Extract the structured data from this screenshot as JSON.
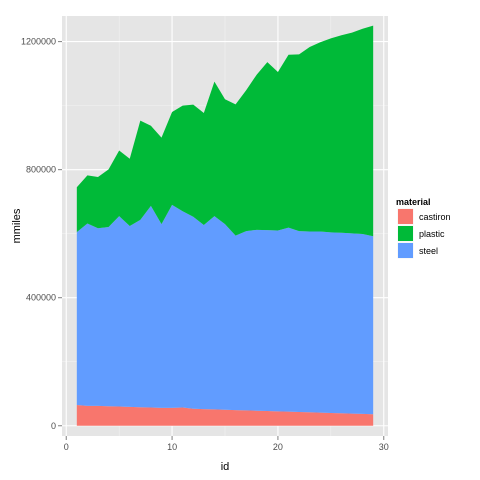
{
  "chart_data": {
    "type": "area",
    "stacked": true,
    "xlabel": "id",
    "ylabel": "mmiles",
    "xlim": [
      -0.4,
      30.4
    ],
    "ylim": [
      -32000,
      1280000
    ],
    "xticks": [
      0,
      10,
      20,
      30
    ],
    "yticks": [
      0,
      400000,
      800000,
      1200000
    ],
    "xtick_labels": [
      "0",
      "10",
      "20",
      "30"
    ],
    "ytick_labels": [
      "0",
      "400000",
      "800000",
      "1200000"
    ],
    "legend": {
      "title": "material",
      "position": "right",
      "entries": [
        "castiron",
        "plastic",
        "steel"
      ]
    },
    "grid": true,
    "background": "#e5e5e5",
    "x": [
      1,
      2,
      3,
      4,
      5,
      6,
      7,
      8,
      9,
      10,
      11,
      12,
      13,
      14,
      15,
      16,
      17,
      18,
      19,
      20,
      21,
      22,
      23,
      24,
      25,
      26,
      27,
      28,
      29
    ],
    "series": [
      {
        "name": "castiron",
        "color": "#f8766d",
        "values": [
          65000,
          62000,
          62000,
          61000,
          60000,
          59000,
          58000,
          57000,
          56000,
          56000,
          57000,
          53000,
          52000,
          51000,
          50000,
          49000,
          48000,
          47000,
          46000,
          45000,
          44000,
          43000,
          42000,
          41000,
          40000,
          39000,
          38000,
          37000,
          36000
        ]
      },
      {
        "name": "steel",
        "color": "#619cff",
        "values": [
          540000,
          570000,
          555000,
          560000,
          595000,
          565000,
          585000,
          630000,
          574000,
          634000,
          613000,
          600000,
          575000,
          604000,
          580000,
          545000,
          560000,
          565000,
          565000,
          565000,
          575000,
          565000,
          565000,
          566000,
          564000,
          564000,
          563000,
          562000,
          556000
        ]
      },
      {
        "name": "plastic",
        "color": "#00ba38",
        "values": [
          140000,
          150000,
          160000,
          180000,
          205000,
          210000,
          310000,
          250000,
          270000,
          290000,
          330000,
          350000,
          350000,
          420000,
          390000,
          410000,
          440000,
          485000,
          525000,
          495000,
          540000,
          552000,
          576000,
          591000,
          606000,
          617000,
          627000,
          641000,
          658000
        ]
      }
    ]
  }
}
